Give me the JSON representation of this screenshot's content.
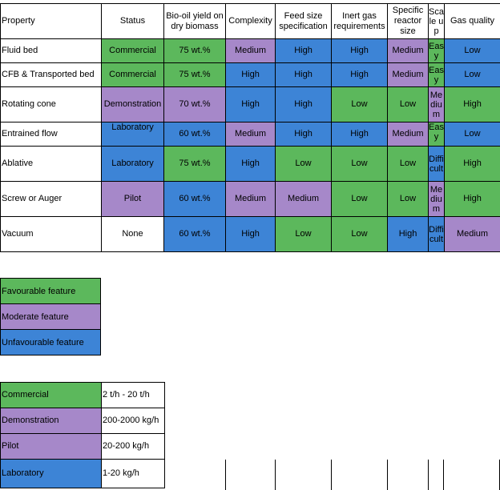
{
  "main_table": {
    "headers": {
      "property": "Property",
      "status": "Status",
      "yield": "Bio-oil yield on dry biomass",
      "complexity": "Complexity",
      "feed": "Feed size specification",
      "inert": "Inert gas requirements",
      "reactor": "Specific reactor size",
      "scale": "Scale up",
      "gas": "Gas quality"
    },
    "rows": [
      {
        "property": "Fluid bed",
        "status": "Commercial",
        "yield": "75 wt.%",
        "complexity": "Medium",
        "feed": "High",
        "inert": "High",
        "reactor": "Medium",
        "scale": "Easy",
        "gas": "Low"
      },
      {
        "property": "CFB & Transported bed",
        "status": "Commercial",
        "yield": "75 wt.%",
        "complexity": "High",
        "feed": "High",
        "inert": "High",
        "reactor": "Medium",
        "scale": "Easy",
        "gas": "Low"
      },
      {
        "property": "Rotating cone",
        "status": "Demonstration",
        "yield": "70 wt.%",
        "complexity": "High",
        "feed": "High",
        "inert": "Low",
        "reactor": "Low",
        "scale": "Medium",
        "gas": "High"
      },
      {
        "property": "Entrained flow",
        "status": "Laboratory",
        "yield": "60 wt.%",
        "complexity": "Medium",
        "feed": "High",
        "inert": "High",
        "reactor": "Medium",
        "scale": "Easy",
        "gas": "Low"
      },
      {
        "property": "Ablative",
        "status": "Laboratory",
        "yield": "75 wt.%",
        "complexity": "High",
        "feed": "Low",
        "inert": "Low",
        "reactor": "Low",
        "scale": "Difficult",
        "gas": "High"
      },
      {
        "property": "Screw or Auger",
        "status": "Pilot",
        "yield": "60 wt.%",
        "complexity": "Medium",
        "feed": "Medium",
        "inert": "Low",
        "reactor": "Low",
        "scale": "Medium",
        "gas": "High"
      },
      {
        "property": "Vacuum",
        "status": "None",
        "yield": "60 wt.%",
        "complexity": "High",
        "feed": "Low",
        "inert": "Low",
        "reactor": "High",
        "scale": "Difficult",
        "gas": "Medium"
      }
    ]
  },
  "legend": [
    {
      "label": "Favourable feature",
      "color": "#5cb85c"
    },
    {
      "label": "Moderate feature",
      "color": "#a688c9"
    },
    {
      "label": "Unfavourable feature",
      "color": "#3d84d6"
    }
  ],
  "scale_table": [
    {
      "status": "Commercial",
      "range": "2 t/h - 20 t/h"
    },
    {
      "status": "Demonstration",
      "range": "200-2000 kg/h"
    },
    {
      "status": "Pilot",
      "range": "20-200 kg/h"
    },
    {
      "status": "Laboratory",
      "range": "1-20 kg/h"
    }
  ]
}
